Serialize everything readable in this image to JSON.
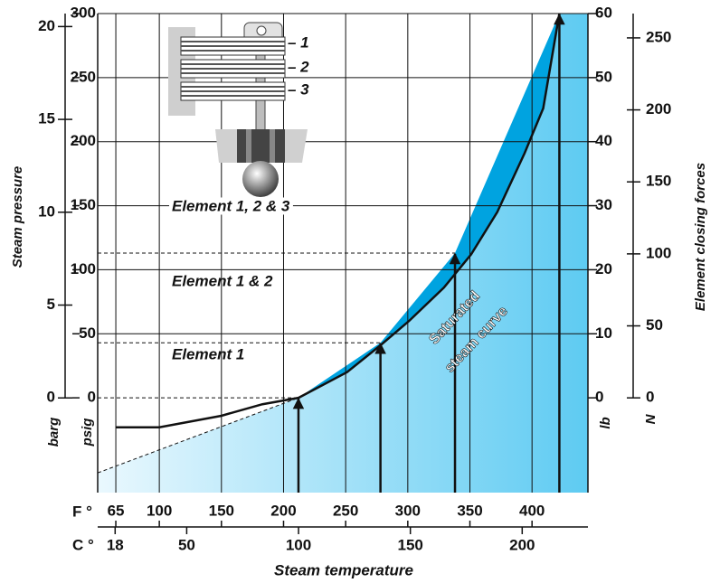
{
  "chart_data": {
    "type": "line",
    "x_label": "Steam temperature",
    "y_label": "Steam pressure",
    "y2_label": "Element closing forces",
    "x_unit": "F °",
    "xlim": [
      50.4,
      445
    ],
    "xticks": [
      65,
      100,
      150,
      200,
      250,
      300,
      350,
      400
    ],
    "x2_unit": "C °",
    "x2lim": [
      10.2,
      229.4
    ],
    "x2ticks": [
      18,
      50,
      100,
      150,
      200
    ],
    "y_unit": "psig",
    "ylim": [
      -74,
      300
    ],
    "yticks": [
      0,
      50,
      100,
      150,
      200,
      250,
      300
    ],
    "y3_unit": "barg",
    "y3lim": [
      -5.1,
      20.7
    ],
    "y3ticks": [
      0,
      5,
      10,
      15,
      20
    ],
    "y2_unit": "lb",
    "y2lim": [
      -14.8,
      60
    ],
    "y2ticks": [
      0,
      10,
      20,
      30,
      40,
      50,
      60
    ],
    "y4_unit": "N",
    "y4lim": [
      -65.8,
      266.9
    ],
    "y4ticks": [
      0,
      50,
      100,
      150,
      200,
      250
    ],
    "grid": true,
    "fill_colors": [
      "#eaf8fe",
      "#5ecbf2"
    ],
    "series": [
      {
        "color": "#111111",
        "x": [
          65,
          100,
          150,
          183,
          212,
          251,
          278,
          301,
          329,
          351,
          372,
          394,
          409,
          422
        ],
        "values": [
          -23,
          -23,
          -14,
          -5,
          0,
          20,
          41,
          60,
          86,
          112,
          145,
          191,
          226,
          300
        ]
      },
      {
        "color": "#00a3e0",
        "x": [
          50.4,
          212,
          278,
          338,
          422
        ],
        "values": [
          -58.6,
          0,
          43,
          113,
          300
        ]
      }
    ],
    "curve_label": [
      "Saturated",
      "steam curve"
    ],
    "annotations": [
      "Element 1, 2 & 3",
      "Element 1 & 2",
      "Element 1"
    ],
    "element_numbers": [
      "– 1",
      "– 2",
      "– 3"
    ]
  }
}
